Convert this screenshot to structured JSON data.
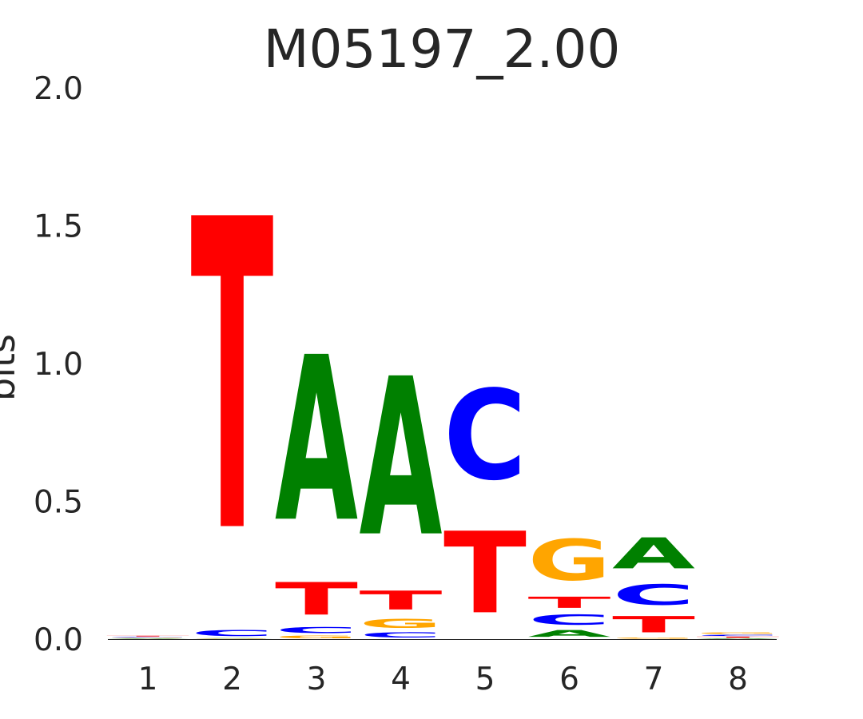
{
  "chart_data": {
    "type": "sequence-logo",
    "title": "M05197_2.00",
    "xlabel": "",
    "ylabel": "bits",
    "ylim": [
      0,
      2
    ],
    "yticks": [
      "0.0",
      "0.5",
      "1.0",
      "1.5",
      "2.0"
    ],
    "yticks_values": [
      0,
      0.5,
      1.0,
      1.5,
      2.0
    ],
    "positions": [
      "1",
      "2",
      "3",
      "4",
      "5",
      "6",
      "7",
      "8"
    ],
    "grid": false,
    "colors": {
      "A": "#008000",
      "C": "#0000ff",
      "G": "#ffa500",
      "T": "#ff0000"
    },
    "stacks": [
      [
        {
          "letter": "A",
          "height": 0.003
        },
        {
          "letter": "G",
          "height": 0.003
        },
        {
          "letter": "C",
          "height": 0.003
        },
        {
          "letter": "T",
          "height": 0.004
        }
      ],
      [
        {
          "letter": "G",
          "height": 0.002
        },
        {
          "letter": "A",
          "height": 0.002
        },
        {
          "letter": "C",
          "height": 0.035
        },
        {
          "letter": "T",
          "height": 1.81
        }
      ],
      [
        {
          "letter": "G",
          "height": 0.015
        },
        {
          "letter": "C",
          "height": 0.035
        },
        {
          "letter": "T",
          "height": 0.19
        },
        {
          "letter": "A",
          "height": 0.96
        }
      ],
      [
        {
          "letter": "C",
          "height": 0.03
        },
        {
          "letter": "G",
          "height": 0.055
        },
        {
          "letter": "T",
          "height": 0.11
        },
        {
          "letter": "A",
          "height": 0.92
        }
      ],
      [
        {
          "letter": "T",
          "height": 0.475
        },
        {
          "letter": "C",
          "height": 0.525
        }
      ],
      [
        {
          "letter": "A",
          "height": 0.04
        },
        {
          "letter": "C",
          "height": 0.06
        },
        {
          "letter": "T",
          "height": 0.065
        },
        {
          "letter": "G",
          "height": 0.24
        }
      ],
      [
        {
          "letter": "G",
          "height": 0.005
        },
        {
          "letter": "T",
          "height": 0.095
        },
        {
          "letter": "C",
          "height": 0.12
        },
        {
          "letter": "A",
          "height": 0.18
        }
      ],
      [
        {
          "letter": "A",
          "height": 0.004
        },
        {
          "letter": "T",
          "height": 0.006
        },
        {
          "letter": "C",
          "height": 0.007
        },
        {
          "letter": "G",
          "height": 0.008
        }
      ]
    ]
  }
}
